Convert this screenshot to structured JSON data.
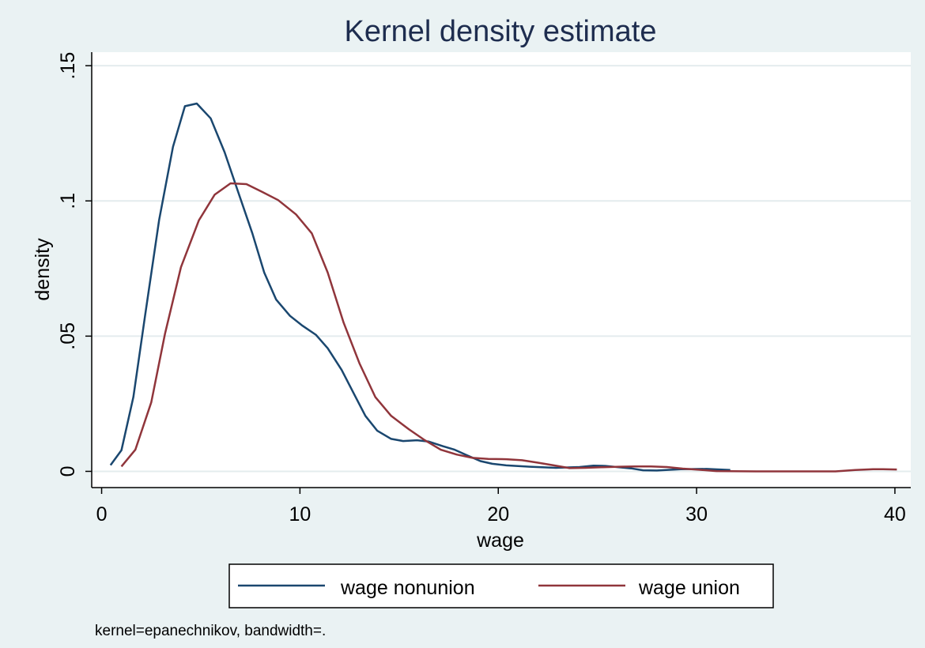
{
  "chart_data": {
    "type": "line",
    "title": "Kernel density estimate",
    "xlabel": "wage",
    "ylabel": "density",
    "xlim": [
      -0.5,
      40.8
    ],
    "ylim": [
      -0.006,
      0.155
    ],
    "x_ticks": [
      0,
      10,
      20,
      30,
      40
    ],
    "x_tick_labels": [
      "0",
      "10",
      "20",
      "30",
      "40"
    ],
    "y_ticks": [
      0,
      0.05,
      0.1,
      0.15
    ],
    "y_tick_labels": [
      "0",
      ".05",
      ".1",
      ".15"
    ],
    "grid": true,
    "legend_position": "bottom",
    "note": "kernel=epanechnikov, bandwidth=.",
    "series": [
      {
        "name": "wage nonunion",
        "color": "#1a476f",
        "points": [
          [
            0.45,
            0.0023
          ],
          [
            1.0,
            0.0078
          ],
          [
            1.6,
            0.0275
          ],
          [
            2.2,
            0.058
          ],
          [
            2.9,
            0.093
          ],
          [
            3.6,
            0.12
          ],
          [
            4.2,
            0.135
          ],
          [
            4.8,
            0.136
          ],
          [
            5.5,
            0.1305
          ],
          [
            6.2,
            0.118
          ],
          [
            6.9,
            0.103
          ],
          [
            7.6,
            0.088
          ],
          [
            8.2,
            0.0735
          ],
          [
            8.8,
            0.0635
          ],
          [
            9.5,
            0.0575
          ],
          [
            10.1,
            0.054
          ],
          [
            10.8,
            0.0505
          ],
          [
            11.4,
            0.0455
          ],
          [
            12.1,
            0.0375
          ],
          [
            12.7,
            0.029
          ],
          [
            13.3,
            0.0205
          ],
          [
            13.9,
            0.015
          ],
          [
            14.6,
            0.012
          ],
          [
            15.2,
            0.0112
          ],
          [
            15.9,
            0.0115
          ],
          [
            16.5,
            0.011
          ],
          [
            17.2,
            0.0093
          ],
          [
            17.8,
            0.008
          ],
          [
            18.4,
            0.006
          ],
          [
            19.1,
            0.0038
          ],
          [
            19.7,
            0.0028
          ],
          [
            20.4,
            0.0022
          ],
          [
            21.6,
            0.0017
          ],
          [
            22.9,
            0.0013
          ],
          [
            24.1,
            0.0016
          ],
          [
            24.8,
            0.0021
          ],
          [
            25.4,
            0.002
          ],
          [
            26.7,
            0.0011
          ],
          [
            27.3,
            0.0004
          ],
          [
            28.0,
            0.0003
          ],
          [
            29.2,
            0.0008
          ],
          [
            30.5,
            0.0009
          ],
          [
            31.7,
            0.0005
          ]
        ]
      },
      {
        "name": "wage union",
        "color": "#90353b",
        "points": [
          [
            1.0,
            0.0018
          ],
          [
            1.7,
            0.008
          ],
          [
            2.5,
            0.0255
          ],
          [
            3.2,
            0.051
          ],
          [
            4.0,
            0.0755
          ],
          [
            4.9,
            0.0928
          ],
          [
            5.7,
            0.1023
          ],
          [
            6.5,
            0.1065
          ],
          [
            7.3,
            0.1062
          ],
          [
            8.1,
            0.1033
          ],
          [
            8.9,
            0.1003
          ],
          [
            9.8,
            0.095
          ],
          [
            10.6,
            0.088
          ],
          [
            11.4,
            0.0735
          ],
          [
            12.2,
            0.055
          ],
          [
            13.0,
            0.04
          ],
          [
            13.8,
            0.0275
          ],
          [
            14.6,
            0.0205
          ],
          [
            15.5,
            0.0155
          ],
          [
            16.3,
            0.0115
          ],
          [
            17.1,
            0.008
          ],
          [
            17.9,
            0.0062
          ],
          [
            18.7,
            0.005
          ],
          [
            19.5,
            0.0046
          ],
          [
            20.4,
            0.0045
          ],
          [
            21.2,
            0.0041
          ],
          [
            22.0,
            0.0032
          ],
          [
            22.8,
            0.0022
          ],
          [
            23.6,
            0.0012
          ],
          [
            24.4,
            0.0013
          ],
          [
            25.2,
            0.0015
          ],
          [
            26.1,
            0.0017
          ],
          [
            26.9,
            0.0018
          ],
          [
            27.7,
            0.0018
          ],
          [
            28.5,
            0.0016
          ],
          [
            29.3,
            0.001
          ],
          [
            30.1,
            0.0006
          ],
          [
            31.0,
            0.0001
          ],
          [
            33.0,
            0.0
          ],
          [
            35.0,
            0.0
          ],
          [
            37.0,
            0.0
          ],
          [
            38.0,
            0.0005
          ],
          [
            38.9,
            0.0008
          ],
          [
            39.4,
            0.0008
          ],
          [
            40.1,
            0.0007
          ]
        ]
      }
    ]
  }
}
